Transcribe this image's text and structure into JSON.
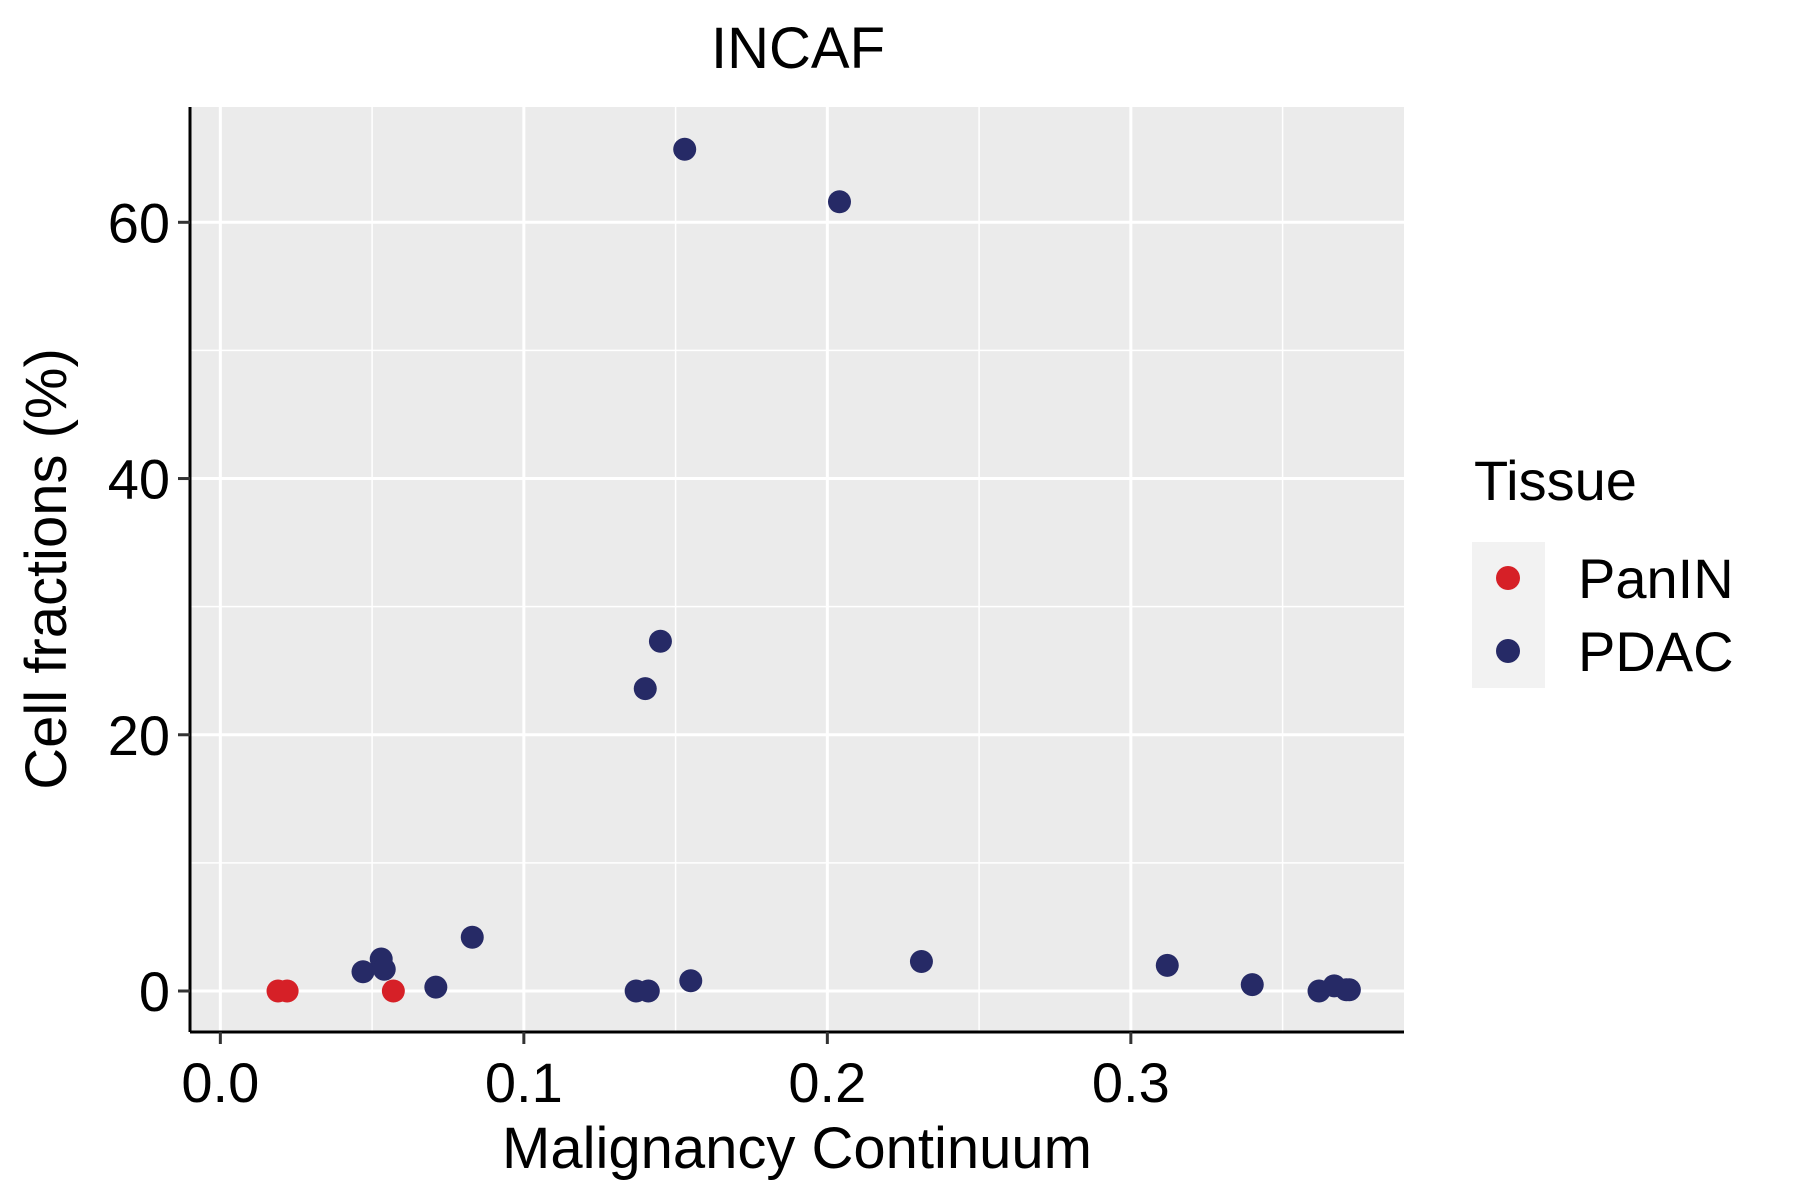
{
  "chart_data": {
    "type": "scatter",
    "title": "INCAF",
    "xlabel": "Malignancy Continuum",
    "ylabel": "Cell fractions (%)",
    "xlim": [
      -0.01,
      0.39
    ],
    "ylim": [
      -3.2,
      69.0
    ],
    "x_ticks": [
      0.0,
      0.1,
      0.2,
      0.3
    ],
    "x_tick_labels": [
      "0.0",
      "0.1",
      "0.2",
      "0.3"
    ],
    "y_ticks": [
      0,
      20,
      40,
      60
    ],
    "y_tick_labels": [
      "0",
      "20",
      "40",
      "60"
    ],
    "x_minor_grid": [
      0.05,
      0.15,
      0.25,
      0.35
    ],
    "y_minor_grid": [
      10,
      30,
      50
    ],
    "grid": true,
    "panel_background": "#EBEBEB",
    "grid_color": "#FFFFFF",
    "legend": {
      "title": "Tissue",
      "position": "right",
      "entries": [
        {
          "label": "PanIN",
          "color": "#D62027"
        },
        {
          "label": "PDAC",
          "color": "#262A66"
        }
      ]
    },
    "series": [
      {
        "name": "PanIN",
        "color": "#D62027",
        "points": [
          {
            "x": 0.019,
            "y": 0.0
          },
          {
            "x": 0.022,
            "y": 0.0
          },
          {
            "x": 0.057,
            "y": 0.0
          }
        ]
      },
      {
        "name": "PDAC",
        "color": "#262A66",
        "points": [
          {
            "x": 0.047,
            "y": 1.5
          },
          {
            "x": 0.053,
            "y": 2.5
          },
          {
            "x": 0.054,
            "y": 1.7
          },
          {
            "x": 0.071,
            "y": 0.3
          },
          {
            "x": 0.083,
            "y": 4.2
          },
          {
            "x": 0.137,
            "y": 0.0
          },
          {
            "x": 0.14,
            "y": 23.6
          },
          {
            "x": 0.141,
            "y": 0.0
          },
          {
            "x": 0.145,
            "y": 27.3
          },
          {
            "x": 0.153,
            "y": 65.7
          },
          {
            "x": 0.155,
            "y": 0.8
          },
          {
            "x": 0.204,
            "y": 61.6
          },
          {
            "x": 0.231,
            "y": 2.3
          },
          {
            "x": 0.312,
            "y": 2.0
          },
          {
            "x": 0.34,
            "y": 0.5
          },
          {
            "x": 0.362,
            "y": 0.0
          },
          {
            "x": 0.367,
            "y": 0.4
          },
          {
            "x": 0.371,
            "y": 0.1
          },
          {
            "x": 0.372,
            "y": 0.1
          }
        ]
      }
    ]
  }
}
